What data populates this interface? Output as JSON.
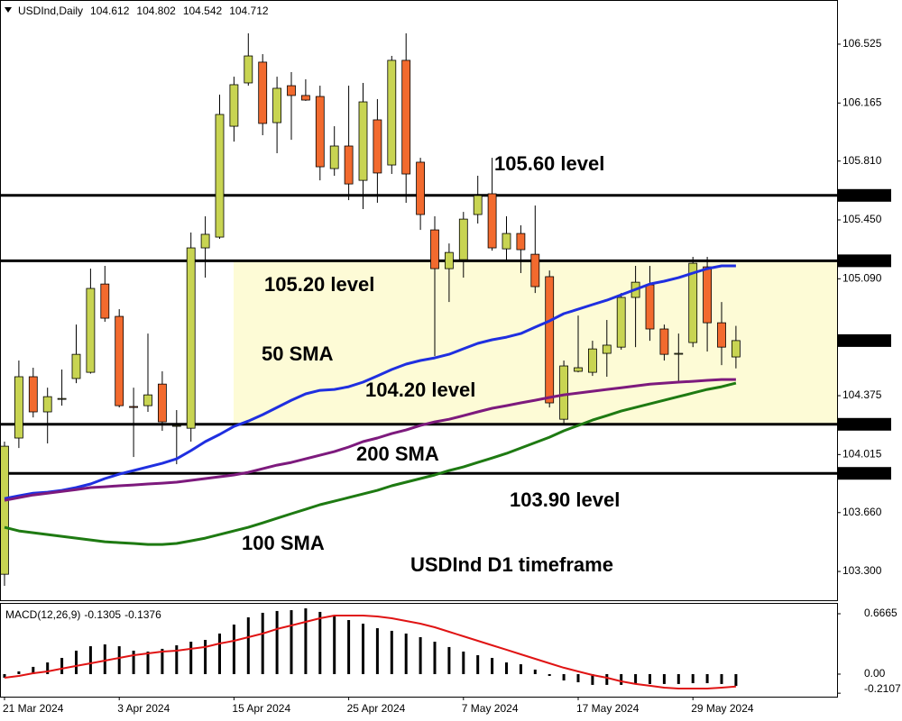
{
  "chart_data": {
    "type": "candlestick",
    "title": "USDInd,Daily",
    "categories": [
      "21 Mar 2024",
      null,
      null,
      null,
      null,
      null,
      null,
      null,
      "3 Apr 2024",
      null,
      null,
      null,
      null,
      null,
      null,
      null,
      "15 Apr 2024",
      null,
      null,
      null,
      null,
      null,
      null,
      null,
      "25 Apr 2024",
      null,
      null,
      null,
      null,
      null,
      null,
      null,
      "7 May 2024",
      null,
      null,
      null,
      null,
      null,
      null,
      null,
      "17 May 2024",
      null,
      null,
      null,
      null,
      null,
      null,
      null,
      "29 May 2024",
      null,
      null,
      null
    ],
    "open": [
      103.283,
      104.116,
      104.491,
      104.276,
      104.358,
      104.48,
      104.518,
      105.058,
      104.86,
      104.309,
      104.314,
      104.446,
      104.193,
      104.176,
      105.279,
      105.345,
      106.023,
      106.288,
      106.415,
      106.045,
      106.271,
      106.211,
      106.205,
      105.764,
      105.902,
      105.692,
      106.062,
      105.786,
      106.426,
      105.803,
      105.389,
      105.152,
      105.207,
      105.483,
      105.61,
      105.273,
      105.367,
      105.24,
      105.103,
      104.231,
      104.524,
      104.518,
      104.634,
      104.672,
      104.976,
      105.053,
      104.783,
      104.634,
      104.7,
      105.163,
      104.821,
      104.612
    ],
    "high": [
      104.094,
      104.59,
      104.546,
      104.424,
      104.535,
      104.81,
      105.152,
      105.169,
      104.904,
      104.424,
      104.755,
      104.524,
      104.287,
      105.373,
      105.472,
      106.216,
      106.326,
      106.591,
      106.464,
      106.326,
      106.354,
      106.31,
      106.271,
      106.023,
      106.271,
      106.288,
      106.189,
      106.453,
      106.591,
      105.83,
      105.472,
      105.306,
      105.499,
      105.72,
      105.83,
      105.472,
      105.417,
      105.538,
      105.141,
      104.59,
      104.865,
      104.711,
      104.838,
      105.003,
      105.169,
      105.169,
      104.81,
      104.755,
      105.224,
      105.224,
      104.948,
      104.802
    ],
    "low": [
      103.212,
      104.055,
      104.242,
      104.083,
      104.314,
      104.452,
      104.51,
      104.827,
      104.303,
      104.0,
      104.276,
      104.16,
      103.956,
      104.094,
      105.097,
      105.334,
      105.929,
      106.271,
      105.968,
      105.858,
      105.94,
      106.178,
      105.692,
      105.72,
      105.571,
      105.516,
      105.555,
      105.731,
      105.555,
      105.389,
      104.617,
      104.948,
      105.097,
      105.428,
      105.262,
      105.196,
      105.125,
      105.003,
      104.303,
      104.204,
      104.518,
      104.496,
      104.491,
      104.656,
      104.672,
      104.711,
      104.59,
      104.452,
      104.672,
      104.645,
      104.562,
      104.542
    ],
    "close": [
      104.066,
      104.491,
      104.276,
      104.369,
      104.358,
      104.628,
      105.031,
      104.849,
      104.314,
      104.303,
      104.38,
      104.215,
      104.193,
      105.279,
      105.362,
      106.095,
      106.277,
      106.453,
      106.04,
      106.255,
      106.211,
      106.183,
      105.775,
      105.902,
      105.67,
      106.172,
      105.737,
      106.426,
      105.731,
      105.483,
      105.152,
      105.251,
      105.455,
      105.599,
      105.279,
      105.367,
      105.268,
      105.042,
      104.331,
      104.557,
      104.546,
      104.661,
      104.684,
      104.976,
      105.069,
      104.783,
      104.628,
      104.634,
      105.185,
      104.821,
      104.672,
      104.712
    ],
    "up_color": "#c8d452",
    "down_color": "#f26a2e",
    "ylim": [
      103.124,
      106.795
    ],
    "yticks": [
      106.525,
      106.165,
      {
        "value": 105.81,
        "label": "105.810"
      },
      {
        "value": 105.45,
        "label": "105.450"
      },
      {
        "value": 105.09,
        "label": "105.090"
      },
      104.375,
      104.015,
      {
        "value": 103.66,
        "label": "103.660"
      },
      {
        "value": 103.3,
        "label": "103.300"
      }
    ],
    "levels": [
      {
        "value": 105.6,
        "label": "105.600"
      },
      {
        "value": 105.2,
        "label": "105.200"
      },
      {
        "value": 104.2,
        "label": "104.200"
      },
      {
        "value": 103.9,
        "label": "103.900"
      }
    ],
    "level_notes": [
      "105.60 level",
      "105.20 level",
      "104.20 level",
      "103.90 level"
    ],
    "annotation": "USDInd D1 timeframe",
    "series": [
      {
        "name": "50 SMA",
        "color": "#1f2fe0",
        "values": [
          103.746,
          103.763,
          103.779,
          103.785,
          103.796,
          103.813,
          103.835,
          103.868,
          103.895,
          103.917,
          103.939,
          103.961,
          103.989,
          104.039,
          104.094,
          104.138,
          104.187,
          104.22,
          104.259,
          104.303,
          104.347,
          104.386,
          104.408,
          104.413,
          104.43,
          104.458,
          104.496,
          104.535,
          104.568,
          104.59,
          104.606,
          104.628,
          104.662,
          104.695,
          104.717,
          104.733,
          104.755,
          104.794,
          104.832,
          104.877,
          104.904,
          104.932,
          104.959,
          104.992,
          105.025,
          105.058,
          105.075,
          105.097,
          105.125,
          105.152,
          105.169,
          105.169
        ]
      },
      {
        "name": "200 SMA",
        "color": "#7d1a7d",
        "values": [
          103.735,
          103.752,
          103.768,
          103.779,
          103.79,
          103.801,
          103.813,
          103.818,
          103.824,
          103.829,
          103.835,
          103.84,
          103.846,
          103.857,
          103.868,
          103.879,
          103.89,
          103.906,
          103.928,
          103.95,
          103.967,
          103.989,
          104.011,
          104.033,
          104.061,
          104.094,
          104.116,
          104.143,
          104.165,
          104.193,
          104.215,
          104.231,
          104.253,
          104.276,
          104.298,
          104.314,
          104.331,
          104.347,
          104.364,
          104.38,
          104.391,
          104.402,
          104.413,
          104.424,
          104.435,
          104.446,
          104.452,
          104.458,
          104.463,
          104.469,
          104.474,
          104.474
        ]
      },
      {
        "name": "100 SMA",
        "color": "#1e7a12",
        "values": [
          103.57,
          103.548,
          103.537,
          103.526,
          103.515,
          103.504,
          103.493,
          103.482,
          103.476,
          103.471,
          103.465,
          103.465,
          103.471,
          103.487,
          103.504,
          103.526,
          103.548,
          103.57,
          103.597,
          103.625,
          103.653,
          103.68,
          103.708,
          103.73,
          103.752,
          103.774,
          103.796,
          103.824,
          103.846,
          103.868,
          103.89,
          103.917,
          103.939,
          103.967,
          103.994,
          104.022,
          104.055,
          104.088,
          104.121,
          104.16,
          104.193,
          104.226,
          104.253,
          104.281,
          104.303,
          104.325,
          104.347,
          104.369,
          104.391,
          104.413,
          104.43,
          104.452
        ]
      }
    ],
    "macd": {
      "name": "MACD(12,26,9)",
      "histogram": [
        -0.04,
        0.03,
        0.08,
        0.129,
        0.179,
        0.259,
        0.308,
        0.328,
        0.308,
        0.259,
        0.249,
        0.279,
        0.318,
        0.358,
        0.378,
        0.448,
        0.547,
        0.627,
        0.677,
        0.697,
        0.706,
        0.726,
        0.687,
        0.647,
        0.597,
        0.557,
        0.507,
        0.478,
        0.448,
        0.408,
        0.358,
        0.299,
        0.249,
        0.209,
        0.179,
        0.129,
        0.109,
        0.05,
        -0.02,
        -0.07,
        -0.09,
        -0.119,
        -0.119,
        -0.119,
        -0.109,
        -0.109,
        -0.109,
        -0.109,
        -0.1,
        -0.1,
        -0.109,
        -0.1305
      ],
      "signal": [
        -0.04,
        -0.02,
        0.01,
        0.03,
        0.06,
        0.09,
        0.119,
        0.149,
        0.179,
        0.209,
        0.229,
        0.249,
        0.259,
        0.279,
        0.299,
        0.338,
        0.368,
        0.408,
        0.448,
        0.498,
        0.537,
        0.577,
        0.617,
        0.647,
        0.647,
        0.647,
        0.637,
        0.617,
        0.587,
        0.557,
        0.517,
        0.468,
        0.418,
        0.368,
        0.318,
        0.269,
        0.219,
        0.169,
        0.119,
        0.07,
        0.03,
        -0.01,
        -0.04,
        -0.08,
        -0.109,
        -0.129,
        -0.149,
        -0.159,
        -0.159,
        -0.159,
        -0.149,
        -0.1376
      ],
      "histogram_color": "#000000",
      "signal_color": "#e01414",
      "ylim": [
        -0.249,
        0.776
      ],
      "yticks": [
        0.6665,
        {
          "value": 0,
          "label": "0.00"
        },
        -0.2107
      ]
    }
  }
}
